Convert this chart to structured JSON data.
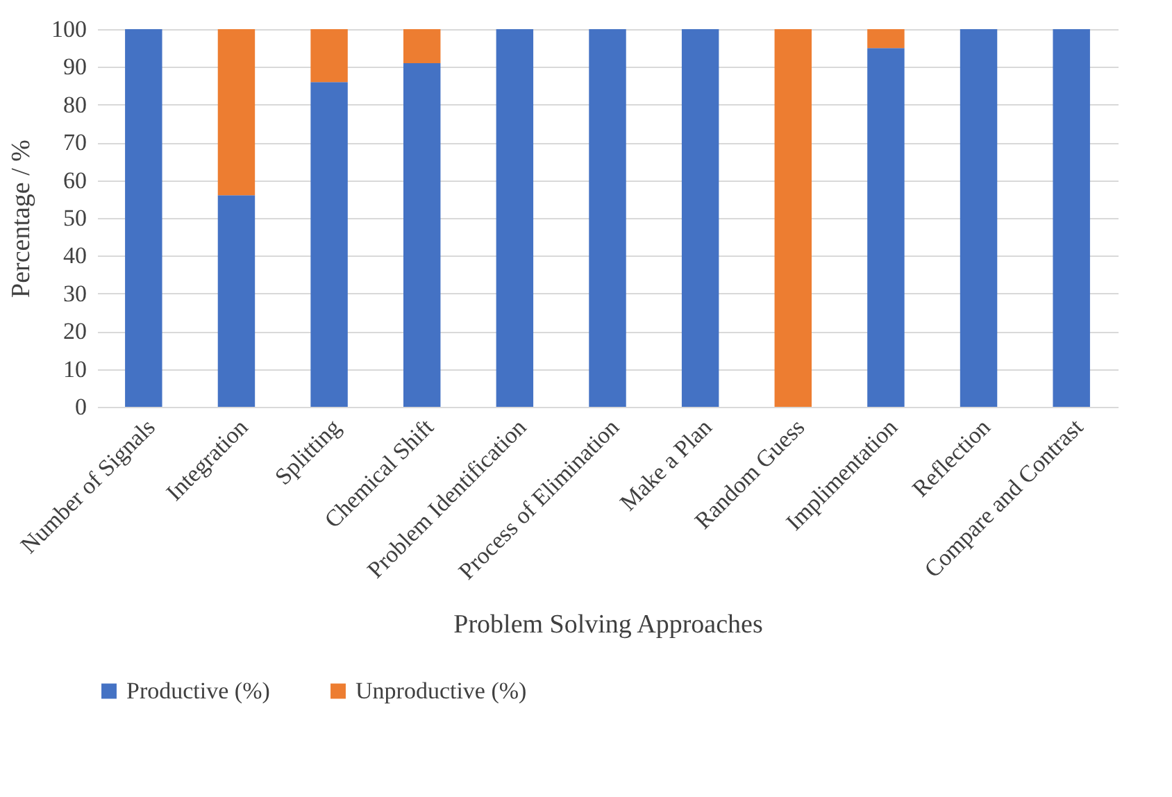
{
  "chart_data": {
    "type": "bar",
    "stacked": true,
    "xlabel": "Problem Solving Approaches",
    "ylabel": "Percentage / %",
    "categories": [
      "Number of Signals",
      "Integration",
      "Splitting",
      "Chemical Shift",
      "Problem Identification",
      "Process of Elimination",
      "Make a Plan",
      "Random Guess",
      "Implimentation",
      "Reflection",
      "Compare and Contrast"
    ],
    "series": [
      {
        "name": "Productive (%)",
        "color": "#4472c4",
        "values": [
          100,
          56,
          86,
          91,
          100,
          100,
          100,
          0,
          95,
          100,
          100
        ]
      },
      {
        "name": "Unproductive (%)",
        "color": "#ed7d31",
        "values": [
          0,
          44,
          14,
          9,
          0,
          0,
          0,
          100,
          5,
          0,
          0
        ]
      }
    ],
    "ylim": [
      0,
      100
    ],
    "yticks": [
      0,
      10,
      20,
      30,
      40,
      50,
      60,
      70,
      80,
      90,
      100
    ],
    "grid": "y",
    "legend": "bottom"
  }
}
